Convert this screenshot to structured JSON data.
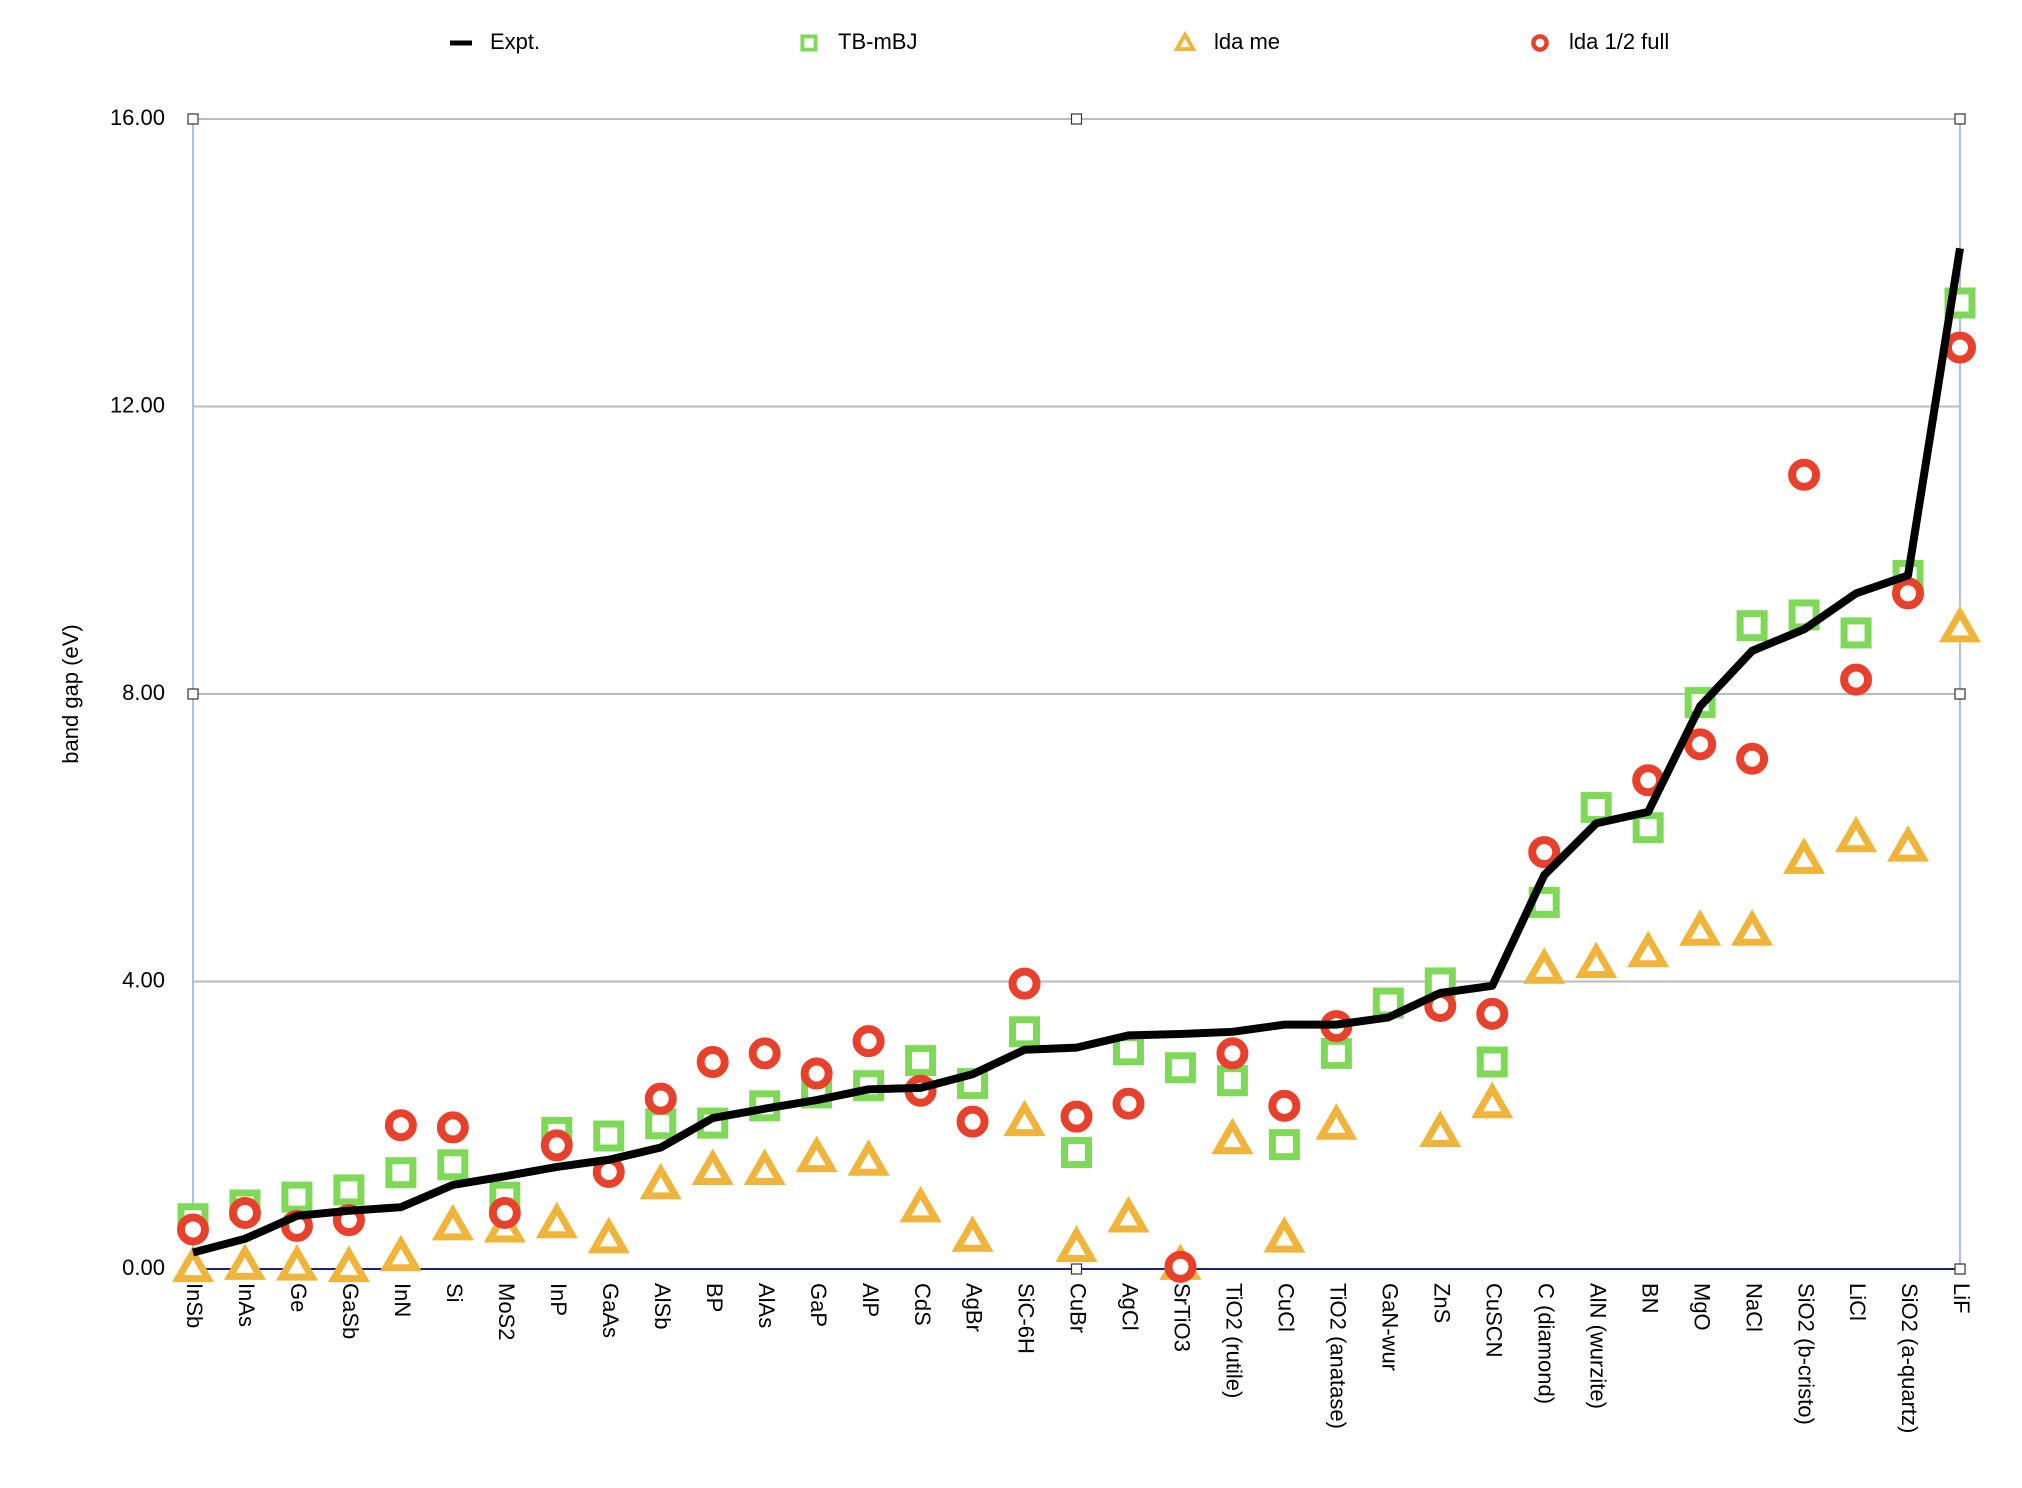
{
  "chart_data": {
    "type": "line-scatter",
    "y_label": "band gap (eV)",
    "categories": [
      "InSb",
      "InAs",
      "Ge",
      "GaSb",
      "InN",
      "Si",
      "MoS2",
      "InP",
      "GaAs",
      "AlSb",
      "BP",
      "AlAs",
      "GaP",
      "AlP",
      "CdS",
      "AgBr",
      "SiC-6H",
      "CuBr",
      "AgCl",
      "SrTiO3",
      "TiO2 (rutile)",
      "CuCl",
      "TiO2 (anatase)",
      "GaN-wur",
      "ZnS",
      "CuSCN",
      "C (diamond)",
      "AlN (wurzite)",
      "BN",
      "MgO",
      "NaCl",
      "SiO2 (b-cristo)",
      "LiCl",
      "SiO2 (a-quartz)",
      "LiF"
    ],
    "series": [
      {
        "name": "Expt.",
        "marker": "line",
        "color": "#000000",
        "values": [
          0.23,
          0.42,
          0.74,
          0.81,
          0.86,
          1.17,
          1.29,
          1.42,
          1.52,
          1.69,
          2.1,
          2.23,
          2.35,
          2.5,
          2.52,
          2.71,
          3.05,
          3.08,
          3.25,
          3.27,
          3.3,
          3.4,
          3.4,
          3.5,
          3.84,
          3.94,
          5.48,
          6.2,
          6.36,
          7.83,
          8.6,
          8.9,
          9.4,
          9.65,
          14.2
        ]
      },
      {
        "name": "TB-mBJ",
        "marker": "square",
        "color": "#7ed957",
        "values": [
          0.7,
          0.89,
          1.0,
          1.1,
          1.34,
          1.45,
          1.0,
          1.9,
          1.85,
          2.02,
          2.03,
          2.27,
          2.45,
          2.55,
          2.9,
          2.58,
          3.3,
          1.62,
          3.05,
          2.8,
          2.62,
          1.73,
          3.0,
          3.7,
          3.98,
          2.88,
          5.1,
          6.42,
          6.14,
          7.88,
          8.95,
          9.1,
          8.85,
          9.65,
          13.44
        ]
      },
      {
        "name": "lda me",
        "marker": "triangle",
        "color": "#f0b43a",
        "values": [
          0.02,
          0.05,
          0.04,
          0.02,
          0.17,
          0.6,
          0.57,
          0.63,
          0.42,
          1.17,
          1.37,
          1.37,
          1.55,
          1.5,
          0.85,
          0.44,
          2.05,
          0.3,
          0.71,
          0.05,
          1.8,
          0.43,
          2.0,
          null,
          1.9,
          2.3,
          4.17,
          4.25,
          4.4,
          4.7,
          4.7,
          5.7,
          6.0,
          5.87,
          8.92
        ]
      },
      {
        "name": "lda 1/2 full",
        "marker": "circle",
        "color": "#e8402a",
        "values": [
          0.55,
          0.78,
          0.6,
          0.68,
          2.0,
          1.97,
          0.78,
          1.72,
          1.35,
          2.37,
          2.88,
          3.0,
          2.72,
          3.17,
          2.48,
          2.05,
          3.97,
          2.12,
          2.3,
          0.03,
          3.0,
          2.27,
          3.38,
          null,
          3.66,
          3.55,
          5.8,
          null,
          6.8,
          7.3,
          7.1,
          11.05,
          8.2,
          9.4,
          12.82
        ]
      }
    ],
    "ylim": [
      0,
      16
    ],
    "yticks": [
      {
        "value": 0,
        "label": "0.00"
      },
      {
        "value": 4,
        "label": "4.00"
      },
      {
        "value": 8,
        "label": "8.00"
      },
      {
        "value": 12,
        "label": "12.00"
      },
      {
        "value": 16,
        "label": "16.00"
      }
    ],
    "grid": true,
    "legend": "top"
  }
}
